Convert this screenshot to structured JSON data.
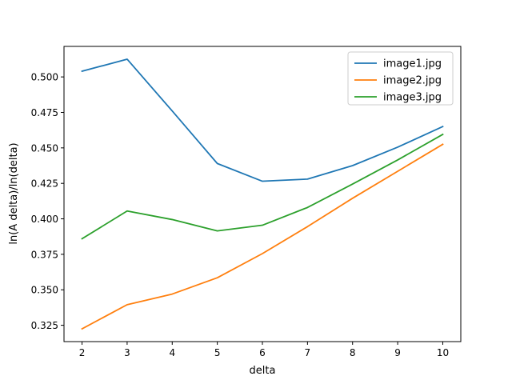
{
  "chart_data": {
    "type": "line",
    "title": "",
    "xlabel": "delta",
    "ylabel": "ln(A delta)/ln(delta)",
    "x": [
      2,
      3,
      4,
      5,
      6,
      7,
      8,
      9,
      10
    ],
    "xticks": [
      2,
      3,
      4,
      5,
      6,
      7,
      8,
      9,
      10
    ],
    "yticks": [
      0.325,
      0.35,
      0.375,
      0.4,
      0.425,
      0.45,
      0.475,
      0.5
    ],
    "ytick_labels": [
      "0.325",
      "0.350",
      "0.375",
      "0.400",
      "0.425",
      "0.450",
      "0.475",
      "0.500"
    ],
    "xlim": [
      1.6,
      10.4
    ],
    "ylim": [
      0.3135,
      0.5215
    ],
    "grid": false,
    "legend_position": "top-right",
    "series": [
      {
        "name": "image1.jpg",
        "color": "#1f77b4",
        "values": [
          0.504,
          0.5125,
          0.476,
          0.439,
          0.4265,
          0.428,
          0.4375,
          0.4505,
          0.465
        ]
      },
      {
        "name": "image2.jpg",
        "color": "#ff7f0e",
        "values": [
          0.3225,
          0.3395,
          0.347,
          0.3585,
          0.3755,
          0.3945,
          0.4145,
          0.4335,
          0.4525
        ]
      },
      {
        "name": "image3.jpg",
        "color": "#2ca02c",
        "values": [
          0.386,
          0.4055,
          0.3995,
          0.3915,
          0.3955,
          0.408,
          0.4245,
          0.4415,
          0.4595
        ]
      }
    ]
  }
}
